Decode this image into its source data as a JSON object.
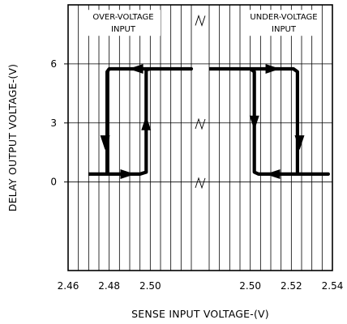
{
  "chart_data": {
    "type": "line",
    "xlabel": "SENSE INPUT VOLTAGE-(V)",
    "ylabel": "DELAY OUTPUT VOLTAGE-(V)",
    "axis_break": "x",
    "grid": true,
    "ylim": [
      -4.5,
      9
    ],
    "y_ticks": [
      {
        "value": 6,
        "label": "6"
      },
      {
        "value": 3,
        "label": "3"
      },
      {
        "value": 0,
        "label": "0"
      }
    ],
    "left_panel": {
      "xlim": [
        2.46,
        2.52
      ],
      "tick_labels": [
        {
          "value": 2.46,
          "label": "2.46"
        },
        {
          "value": 2.48,
          "label": "2.48"
        },
        {
          "value": 2.5,
          "label": "2.50"
        }
      ],
      "annotation": [
        "OVER-VOLTAGE",
        "INPUT"
      ],
      "path": [
        {
          "x": 2.47,
          "y": 0.4
        },
        {
          "x": 2.479,
          "y": 0.4
        },
        {
          "x": 2.495,
          "y": 0.4
        },
        {
          "x": 2.498,
          "y": 0.5
        },
        {
          "x": 2.498,
          "y": 5.7
        },
        {
          "x": 2.5,
          "y": 5.75
        },
        {
          "x": 2.52,
          "y": 5.75
        },
        {
          "x": 2.48,
          "y": 5.75
        },
        {
          "x": 2.479,
          "y": 5.6
        },
        {
          "x": 2.479,
          "y": 0.4
        }
      ],
      "arrows": [
        {
          "x": 2.478,
          "y": 2.0,
          "dir": "down"
        },
        {
          "x": 2.489,
          "y": 0.4,
          "dir": "right"
        },
        {
          "x": 2.498,
          "y": 3.0,
          "dir": "up"
        },
        {
          "x": 2.493,
          "y": 5.75,
          "dir": "left"
        }
      ]
    },
    "right_panel": {
      "xlim": [
        2.48,
        2.54
      ],
      "tick_labels": [
        {
          "value": 2.5,
          "label": "2.50"
        },
        {
          "value": 2.52,
          "label": "2.52"
        },
        {
          "value": 2.54,
          "label": "2.54"
        }
      ],
      "annotation": [
        "UNDER-VOLTAGE",
        "INPUT"
      ],
      "path": [
        {
          "x": 2.48,
          "y": 5.75
        },
        {
          "x": 2.5,
          "y": 5.75
        },
        {
          "x": 2.502,
          "y": 5.6
        },
        {
          "x": 2.502,
          "y": 0.5
        },
        {
          "x": 2.504,
          "y": 0.4
        },
        {
          "x": 2.538,
          "y": 0.4
        },
        {
          "x": 2.523,
          "y": 0.4
        },
        {
          "x": 2.523,
          "y": 5.6
        },
        {
          "x": 2.521,
          "y": 5.75
        },
        {
          "x": 2.5,
          "y": 5.75
        }
      ],
      "arrows": [
        {
          "x": 2.511,
          "y": 5.75,
          "dir": "right"
        },
        {
          "x": 2.502,
          "y": 3.0,
          "dir": "down"
        },
        {
          "x": 2.511,
          "y": 0.4,
          "dir": "left"
        },
        {
          "x": 2.524,
          "y": 2.0,
          "dir": "down"
        }
      ]
    }
  }
}
